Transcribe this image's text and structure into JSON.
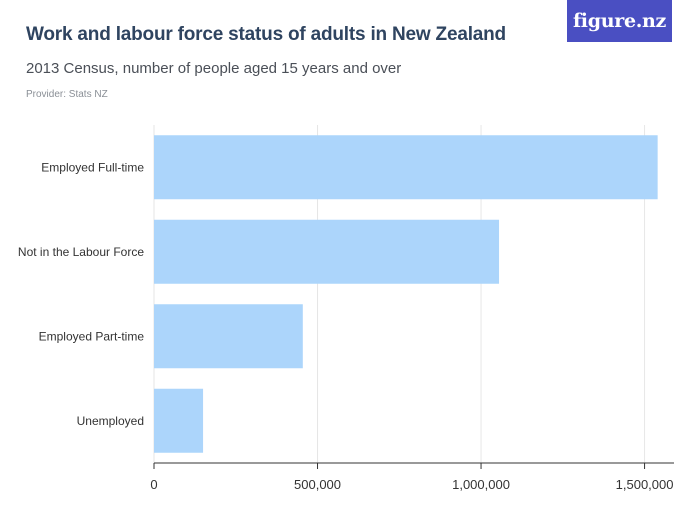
{
  "header": {
    "title": "Work and labour force status of adults in New Zealand",
    "subtitle": "2013 Census, number of people aged 15 years and over",
    "provider": "Provider: Stats NZ",
    "logo_text": "figure.nz"
  },
  "colors": {
    "bar": "#acd5fb",
    "grid": "#e6e6e6",
    "axis": "#333333",
    "logo_bg": "#4a4fc2"
  },
  "chart_data": {
    "type": "bar",
    "orientation": "horizontal",
    "categories": [
      "Employed Full-time",
      "Not in the Labour Force",
      "Employed Part-time",
      "Unemployed"
    ],
    "values": [
      1540000,
      1055000,
      455000,
      150000
    ],
    "xlim": [
      0,
      1590000
    ],
    "ticks": [
      0,
      500000,
      1000000,
      1500000
    ],
    "tick_labels": [
      "0",
      "500,000",
      "1,000,000",
      "1,500,000"
    ],
    "grid": true
  }
}
